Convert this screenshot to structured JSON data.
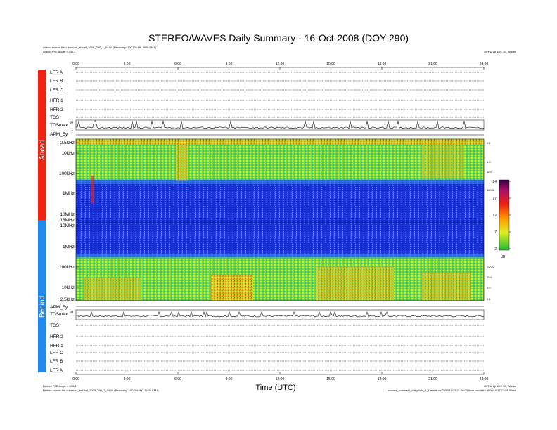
{
  "title": "STEREO/WAVES Daily Summary - 16-Oct-2008 (DOY 290)",
  "header": {
    "ahead_source": "Ahead source file = swaves_ahead_2008_290_1_04.lin (Recovery: 100.0% HK, 98% FM1)",
    "ahead_pse": "Ahead PSE Angle = 333.3",
    "credit": "GFPU Lp 10/1 10, Wades"
  },
  "footer": {
    "behind_pse": "Behind PSE Angle = 333.3",
    "behind_source": "Behind source file = swaves_behind_2008_290_1_04.lin (Recovery: 100.0% HK, 114% FM1)",
    "program_note": "swaves_summary_dailyplots_1_1 made on 2009/11/13 21:00:03 from raw data 2008/10/17 13:01 Wash",
    "credit": "GFPU Lp 10/1 10, Wades"
  },
  "side_labels": {
    "ahead": "Ahead",
    "behind": "Behind"
  },
  "colorbar": {
    "ticks": [
      "24",
      "17",
      "12",
      "7",
      "2"
    ],
    "unit": "dB"
  },
  "chart_data": {
    "type": "heatmap",
    "xlabel": "Time (UTC)",
    "x_ticks": [
      "0:00",
      "3:00",
      "6:00",
      "9:00",
      "12:00",
      "15:00",
      "18:00",
      "21:00",
      "24:00"
    ],
    "xlim": [
      0,
      24
    ],
    "ahead_rows": [
      "LFR A",
      "LFR B",
      "LFR C",
      "HFR 1",
      "HFR 2",
      "TDS",
      "TDSmax",
      "APM_Ey"
    ],
    "behind_rows": [
      "APM_Ey",
      "TDSmax",
      "TDS",
      "HFR 2",
      "HFR 1",
      "LFR C",
      "LFR B",
      "LFR A"
    ],
    "ahead_freq_ticks": [
      "2.5kHz",
      "10kHz",
      "100kHz",
      "1MHz",
      "10MHz",
      "16MHz"
    ],
    "behind_freq_ticks": [
      "16MHz",
      "10MHz",
      "1MHz",
      "100kHz",
      "10kHz",
      "2.5kHz"
    ],
    "tdsmax_ticks": [
      "10",
      "1"
    ],
    "colorbar_range_db": [
      2,
      24
    ],
    "spectrogram_scale": "log frequency",
    "right_axis_ticks": [
      "0.1",
      "1.0",
      "10.0",
      "100.0"
    ]
  },
  "colors": {
    "ahead_bar": "#ee2211",
    "behind_bar": "#2288ee",
    "spectrum_background": "#1a2ad0",
    "colorbar": [
      "#22bb33",
      "#ddee22",
      "#ff9900",
      "#ee2211",
      "#aa1166",
      "#330044"
    ]
  }
}
